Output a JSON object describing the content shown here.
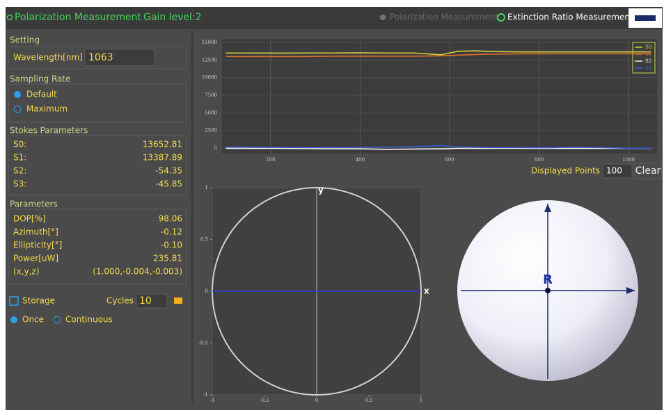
{
  "header": {
    "title": "Polarization Measurement",
    "gain": "Gain level:2",
    "tabs": [
      "Polarization Measurement",
      "Extinction Ratio Measurement"
    ]
  },
  "left": {
    "setting": {
      "title": "Setting",
      "label": "Wavelength[nm]",
      "value": "1063"
    },
    "sampling": {
      "title": "Sampling Rate",
      "options": [
        "Default",
        "Maximum"
      ]
    },
    "stokes": {
      "title": "Stokes Parameters",
      "rows": [
        [
          "S0:",
          "13652.81"
        ],
        [
          "S1:",
          "13387.89"
        ],
        [
          "S2:",
          "-54.35"
        ],
        [
          "S3:",
          "-45.85"
        ]
      ]
    },
    "parameters": {
      "title": "Parameters",
      "rows": [
        [
          "DOP[%]",
          "98.06"
        ],
        [
          "Azimuth[°]",
          "-0.12"
        ],
        [
          "Ellipticity[°]",
          "-0.10"
        ],
        [
          "Power[uW]",
          "235.81"
        ],
        [
          "(x,y,z)",
          "(1.000,-0.004,-0.003)"
        ]
      ]
    },
    "storage": {
      "label": "Storage",
      "cycles_label": "Cycles",
      "cycles": "10",
      "modes": [
        "Once",
        "Continuous"
      ]
    }
  },
  "controls": {
    "points_label": "Displayed Points",
    "points": "100",
    "clear": "Clear"
  },
  "chart_data": [
    {
      "type": "line",
      "x": [
        100,
        160,
        220,
        280,
        340,
        400,
        460,
        520,
        580,
        620,
        660,
        700,
        760,
        820,
        880,
        940,
        1000,
        1050
      ],
      "series": [
        {
          "name": "S0",
          "color": "#d6d23c",
          "values": [
            13500,
            13500,
            13480,
            13500,
            13500,
            13520,
            13500,
            13500,
            13250,
            13750,
            13800,
            13700,
            13650,
            13650,
            13650,
            13650,
            13650,
            13650
          ]
        },
        {
          "name": "S1",
          "color": "#e0702a",
          "values": [
            13000,
            13000,
            13000,
            13000,
            13050,
            13050,
            13050,
            13050,
            13100,
            13200,
            13300,
            13350,
            13380,
            13390,
            13390,
            13390,
            13390,
            13390
          ]
        },
        {
          "name": "S2",
          "color": "#f0f0f0",
          "values": [
            -50,
            -60,
            -60,
            -80,
            -100,
            -120,
            -200,
            -150,
            -120,
            -60,
            -50,
            -50,
            -60,
            -55,
            -50,
            -55,
            -55,
            -54
          ]
        },
        {
          "name": "S3",
          "color": "#3a5cd8",
          "values": [
            150,
            100,
            80,
            60,
            50,
            100,
            120,
            200,
            350,
            150,
            80,
            60,
            50,
            40,
            100,
            50,
            -40,
            -46
          ]
        }
      ],
      "xlim": [
        90,
        1065
      ],
      "ylim": [
        -900,
        15600
      ],
      "xticks": [
        200,
        400,
        600,
        800,
        1000
      ],
      "yticks": [
        0,
        2500,
        5000,
        7500,
        10000,
        12500,
        15000
      ],
      "grid": true,
      "legend": "upper right"
    },
    {
      "type": "line",
      "x_label": "x",
      "y_label": "y",
      "x": [
        -1,
        1
      ],
      "series": [
        {
          "color": "#2d3be0",
          "values": [
            0,
            0
          ]
        }
      ],
      "xlim": [
        -1,
        1
      ],
      "ylim": [
        -1,
        1
      ],
      "xticks": [
        -1,
        -0.5,
        0,
        0.5,
        1
      ],
      "yticks": [
        -1,
        -0.5,
        0,
        0.5,
        1
      ],
      "grid": false
    }
  ],
  "sphere": {
    "label": "R"
  }
}
